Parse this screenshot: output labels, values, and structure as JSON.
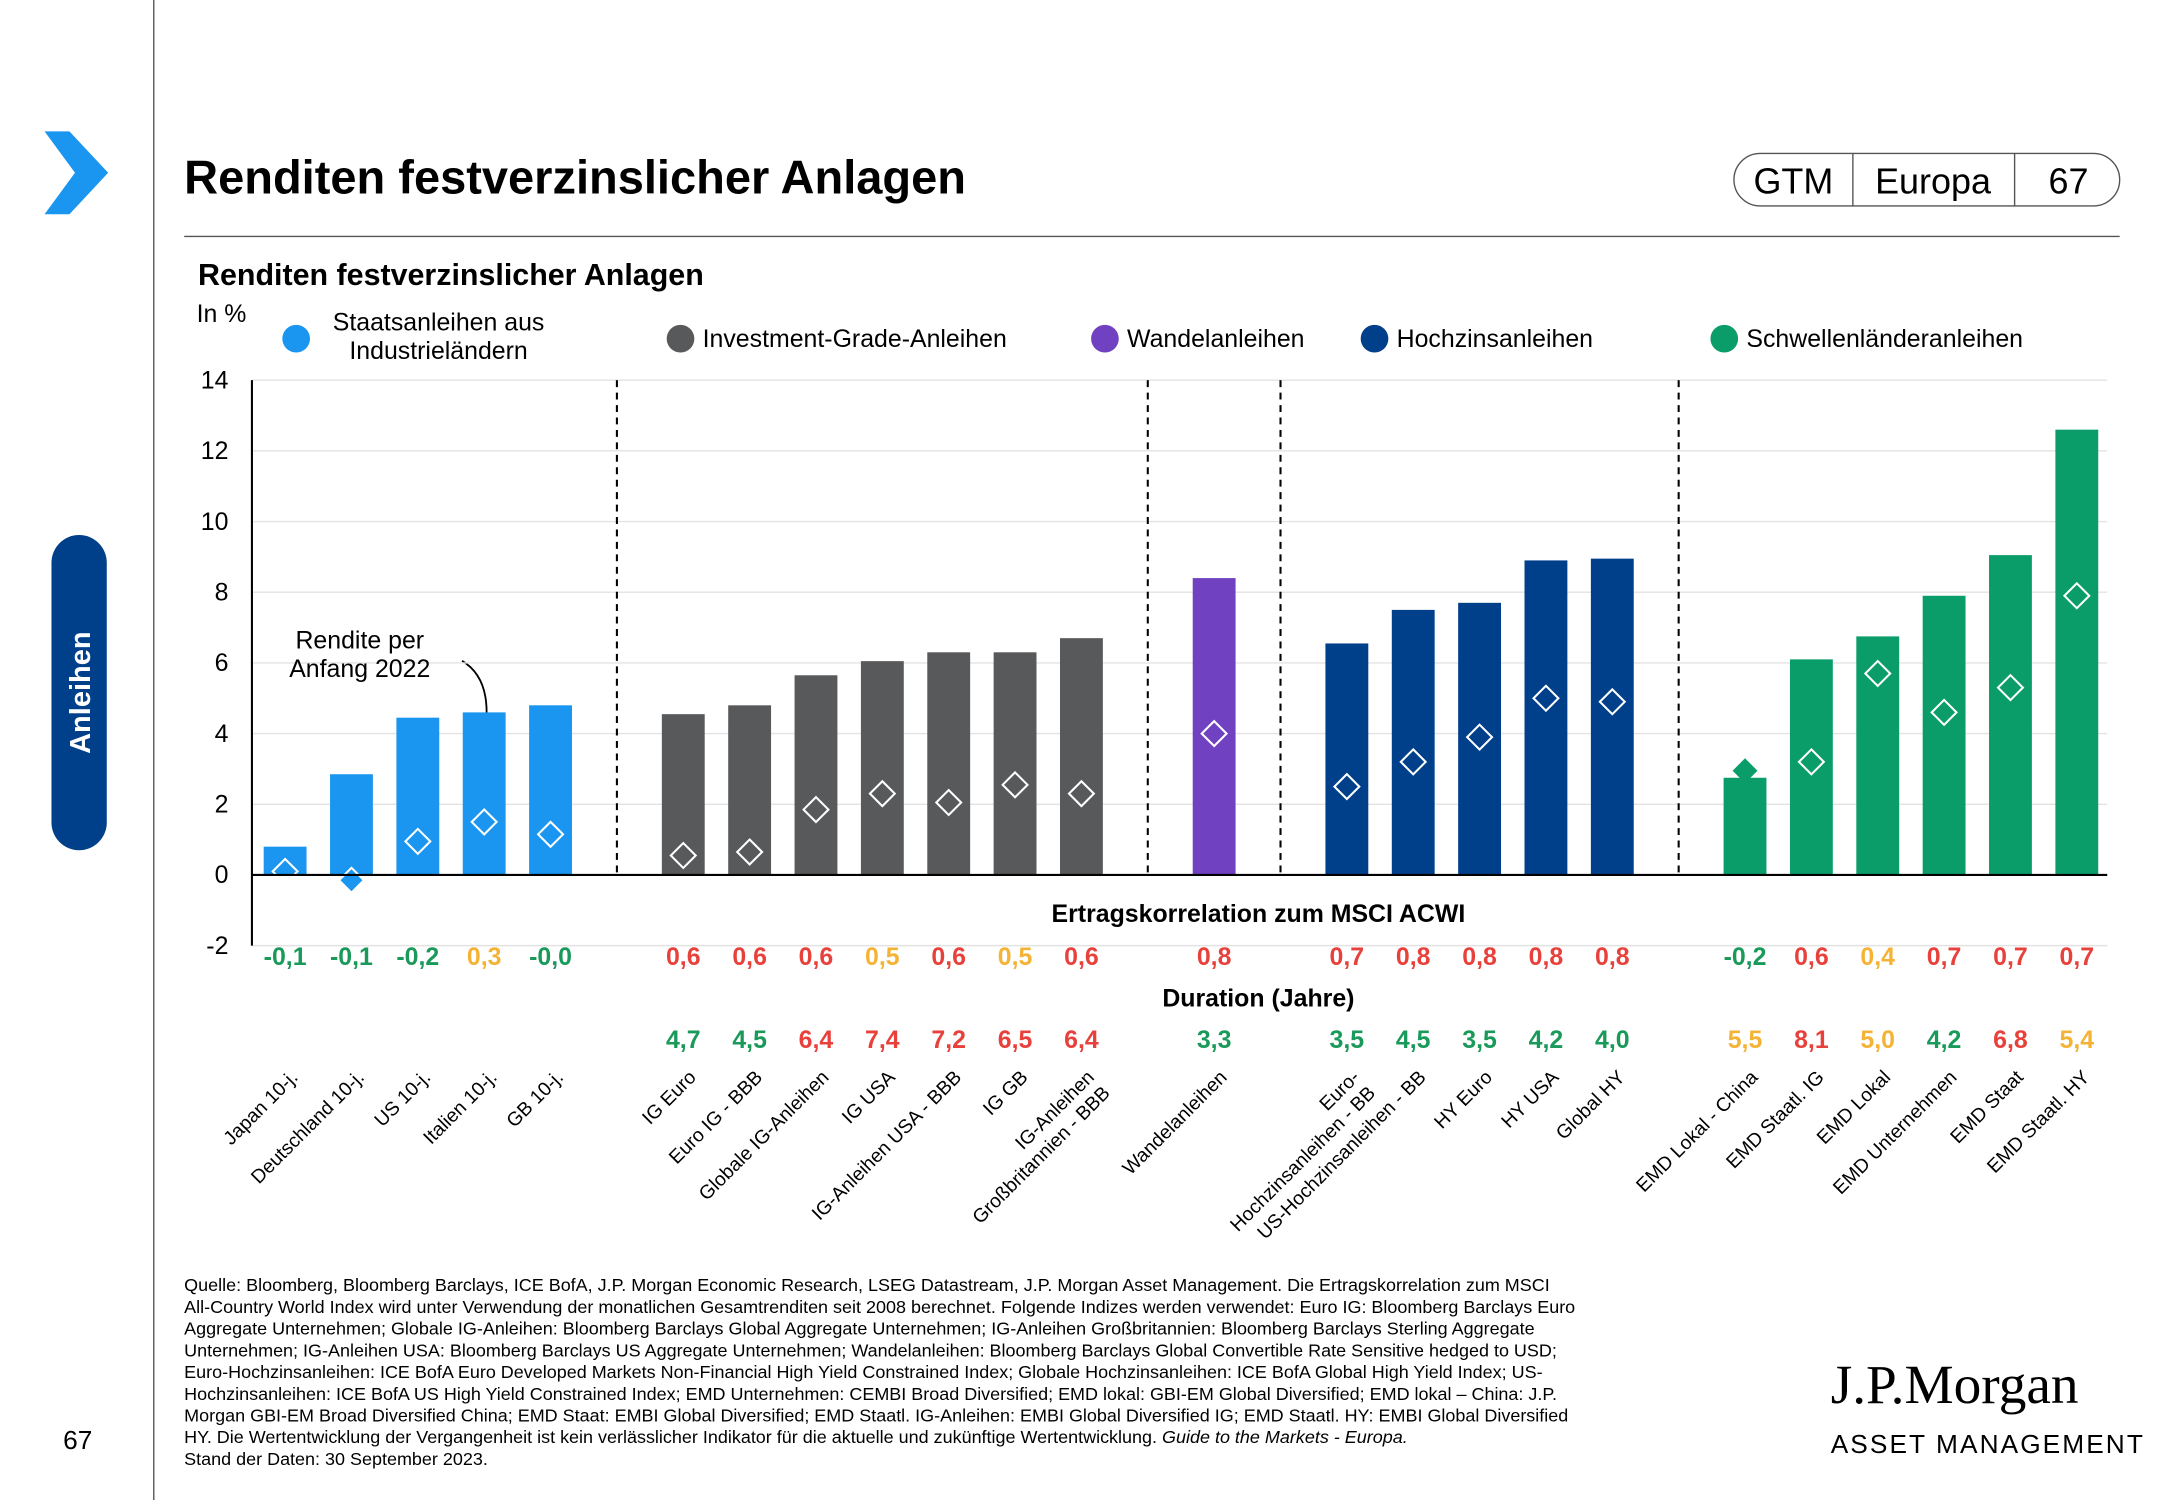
{
  "header": {
    "title": "Renditen festverzinslicher Anlagen",
    "tags": [
      "GTM",
      "Europa",
      "67"
    ],
    "section": "Anleihen",
    "page_number": "67"
  },
  "chart_data": {
    "type": "bar",
    "title": "Renditen festverzinslicher Anlagen",
    "y_label": "In %",
    "ylim": [
      -2,
      14
    ],
    "yticks": [
      -2,
      0,
      2,
      4,
      6,
      8,
      10,
      12,
      14
    ],
    "grid": true,
    "annotation": "Rendite per\nAnfang 2022",
    "correlation_title": "Ertragskorrelation zum MSCI ACWI",
    "duration_title": "Duration (Jahre)",
    "series": [
      {
        "name": "Staatsanleihen aus\nIndustrieländern",
        "color": "#1a96f0",
        "categories": [
          "Japan 10-j.",
          "Deutschland  10-j.",
          "US 10-j.",
          "Italien 10-j.",
          "GB 10-j."
        ],
        "values": [
          0.8,
          2.85,
          4.45,
          4.6,
          4.8
        ],
        "start_2022": [
          0.1,
          -0.15,
          0.95,
          1.5,
          1.15
        ],
        "correlation": [
          -0.1,
          -0.1,
          -0.2,
          0.3,
          0
        ],
        "correlation_labels": [
          "-0,1",
          "-0,1",
          "-0,2",
          "0,3",
          "-0,0"
        ],
        "correlation_colors": [
          "#1a9a5a",
          "#1a9a5a",
          "#1a9a5a",
          "#f5b335",
          "#1a9a5a"
        ]
      },
      {
        "name": "Investment-Grade-Anleihen",
        "color": "#58595b",
        "categories": [
          "IG Euro",
          "Euro IG - BBB",
          "Globale IG-Anleihen",
          "IG USA",
          "IG-Anleihen USA - BBB",
          "IG GB",
          "IG-Anleihen\nGroßbritannien - BBB"
        ],
        "values": [
          4.55,
          4.8,
          5.65,
          6.05,
          6.3,
          6.3,
          6.7
        ],
        "start_2022": [
          0.55,
          0.65,
          1.85,
          2.3,
          2.05,
          2.55,
          2.3
        ],
        "correlation": [
          0.6,
          0.6,
          0.6,
          0.5,
          0.6,
          0.5,
          0.6
        ],
        "correlation_labels": [
          "0,6",
          "0,6",
          "0,6",
          "0,5",
          "0,6",
          "0,5",
          "0,6"
        ],
        "correlation_colors": [
          "#e8413c",
          "#e8413c",
          "#e8413c",
          "#f5b335",
          "#e8413c",
          "#f5b335",
          "#e8413c"
        ],
        "duration": [
          4.7,
          4.5,
          6.4,
          7.4,
          7.2,
          6.5,
          6.4
        ],
        "duration_labels": [
          "4,7",
          "4,5",
          "6,4",
          "7,4",
          "7,2",
          "6,5",
          "6,4"
        ],
        "duration_colors": [
          "#1a9a5a",
          "#1a9a5a",
          "#e8413c",
          "#e8413c",
          "#e8413c",
          "#e8413c",
          "#e8413c"
        ]
      },
      {
        "name": "Wandelanleihen",
        "color": "#7041c0",
        "categories": [
          "Wandelanleihen"
        ],
        "values": [
          8.4
        ],
        "start_2022": [
          4.0
        ],
        "correlation": [
          0.8
        ],
        "correlation_labels": [
          "0,8"
        ],
        "correlation_colors": [
          "#e8413c"
        ],
        "duration": [
          3.3
        ],
        "duration_labels": [
          "3,3"
        ],
        "duration_colors": [
          "#1a9a5a"
        ]
      },
      {
        "name": "Hochzinsanleihen",
        "color": "#003f8a",
        "categories": [
          "Euro-\nHochzinsanleihen - BB",
          "US-Hochzinsanleihen - BB",
          "HY Euro",
          "HY USA",
          "Global HY"
        ],
        "values": [
          6.55,
          7.5,
          7.7,
          8.9,
          8.95
        ],
        "start_2022": [
          2.5,
          3.2,
          3.9,
          5.0,
          4.9
        ],
        "correlation": [
          0.7,
          0.8,
          0.8,
          0.8,
          0.8
        ],
        "correlation_labels": [
          "0,7",
          "0,8",
          "0,8",
          "0,8",
          "0,8"
        ],
        "correlation_colors": [
          "#e8413c",
          "#e8413c",
          "#e8413c",
          "#e8413c",
          "#e8413c"
        ],
        "duration": [
          3.5,
          4.5,
          3.5,
          4.2,
          4.0
        ],
        "duration_labels": [
          "3,5",
          "4,5",
          "3,5",
          "4,2",
          "4,0"
        ],
        "duration_colors": [
          "#1a9a5a",
          "#1a9a5a",
          "#1a9a5a",
          "#1a9a5a",
          "#1a9a5a"
        ]
      },
      {
        "name": "Schwellenländeranleihen",
        "color": "#0a9d6a",
        "categories": [
          "EMD Lokal - China",
          "EMD Staatl. IG",
          "EMD Lokal",
          "EMD Unternehmen",
          "EMD Staat",
          "EMD Staatl. HY"
        ],
        "values": [
          2.75,
          6.1,
          6.75,
          7.9,
          9.05,
          12.6
        ],
        "start_2022": [
          2.95,
          3.2,
          5.7,
          4.6,
          5.3,
          7.9
        ],
        "correlation": [
          -0.2,
          0.6,
          0.4,
          0.7,
          0.7,
          0.7
        ],
        "correlation_labels": [
          "-0,2",
          "0,6",
          "0,4",
          "0,7",
          "0,7",
          "0,7"
        ],
        "correlation_colors": [
          "#1a9a5a",
          "#e8413c",
          "#f5b335",
          "#e8413c",
          "#e8413c",
          "#e8413c"
        ],
        "duration": [
          5.5,
          8.1,
          5.0,
          4.2,
          6.8,
          5.4
        ],
        "duration_labels": [
          "5,5",
          "8,1",
          "5,0",
          "4,2",
          "6,8",
          "5,4"
        ],
        "duration_colors": [
          "#f5b335",
          "#e8413c",
          "#f5b335",
          "#1a9a5a",
          "#e8413c",
          "#f5b335"
        ]
      }
    ]
  },
  "footnote": {
    "lines": [
      "Quelle: Bloomberg, Bloomberg Barclays, ICE BofA, J.P. Morgan Economic Research, LSEG Datastream, J.P. Morgan Asset Management. Die Ertragskorrelation zum MSCI",
      "All-Country World Index wird unter Verwendung der monatlichen Gesamtrenditen seit 2008 berechnet. Folgende Indizes werden verwendet: Euro IG: Bloomberg Barclays Euro",
      "Aggregate Unternehmen; Globale IG-Anleihen: Bloomberg Barclays Global Aggregate Unternehmen; IG-Anleihen Großbritannien: Bloomberg Barclays Sterling Aggregate",
      "Unternehmen; IG-Anleihen USA: Bloomberg Barclays US Aggregate Unternehmen; Wandelanleihen: Bloomberg Barclays Global Convertible Rate Sensitive hedged to USD;",
      "Euro-Hochzinsanleihen: ICE BofA Euro Developed Markets Non-Financial High Yield Constrained Index; Globale Hochzinsanleihen: ICE BofA Global High Yield Index; US-",
      "Hochzinsanleihen: ICE BofA US High Yield Constrained Index; EMD Unternehmen: CEMBI Broad Diversified; EMD lokal: GBI-EM Global Diversified; EMD lokal – China: J.P.",
      "Morgan GBI-EM Broad Diversified China; EMD Staat: EMBI Global Diversified; EMD Staatl. IG-Anleihen: EMBI Global Diversified IG; EMD Staatl. HY: EMBI Global Diversified",
      "HY. Die Wertentwicklung der Vergangenheit ist kein verlässlicher Indikator für die aktuelle und zukünftige Wertentwicklung. ",
      "Stand der Daten: 30 September 2023."
    ],
    "italic": "Guide to the Markets - Europa."
  },
  "logo": {
    "name": "J.P.Morgan",
    "sub": "ASSET MANAGEMENT"
  }
}
